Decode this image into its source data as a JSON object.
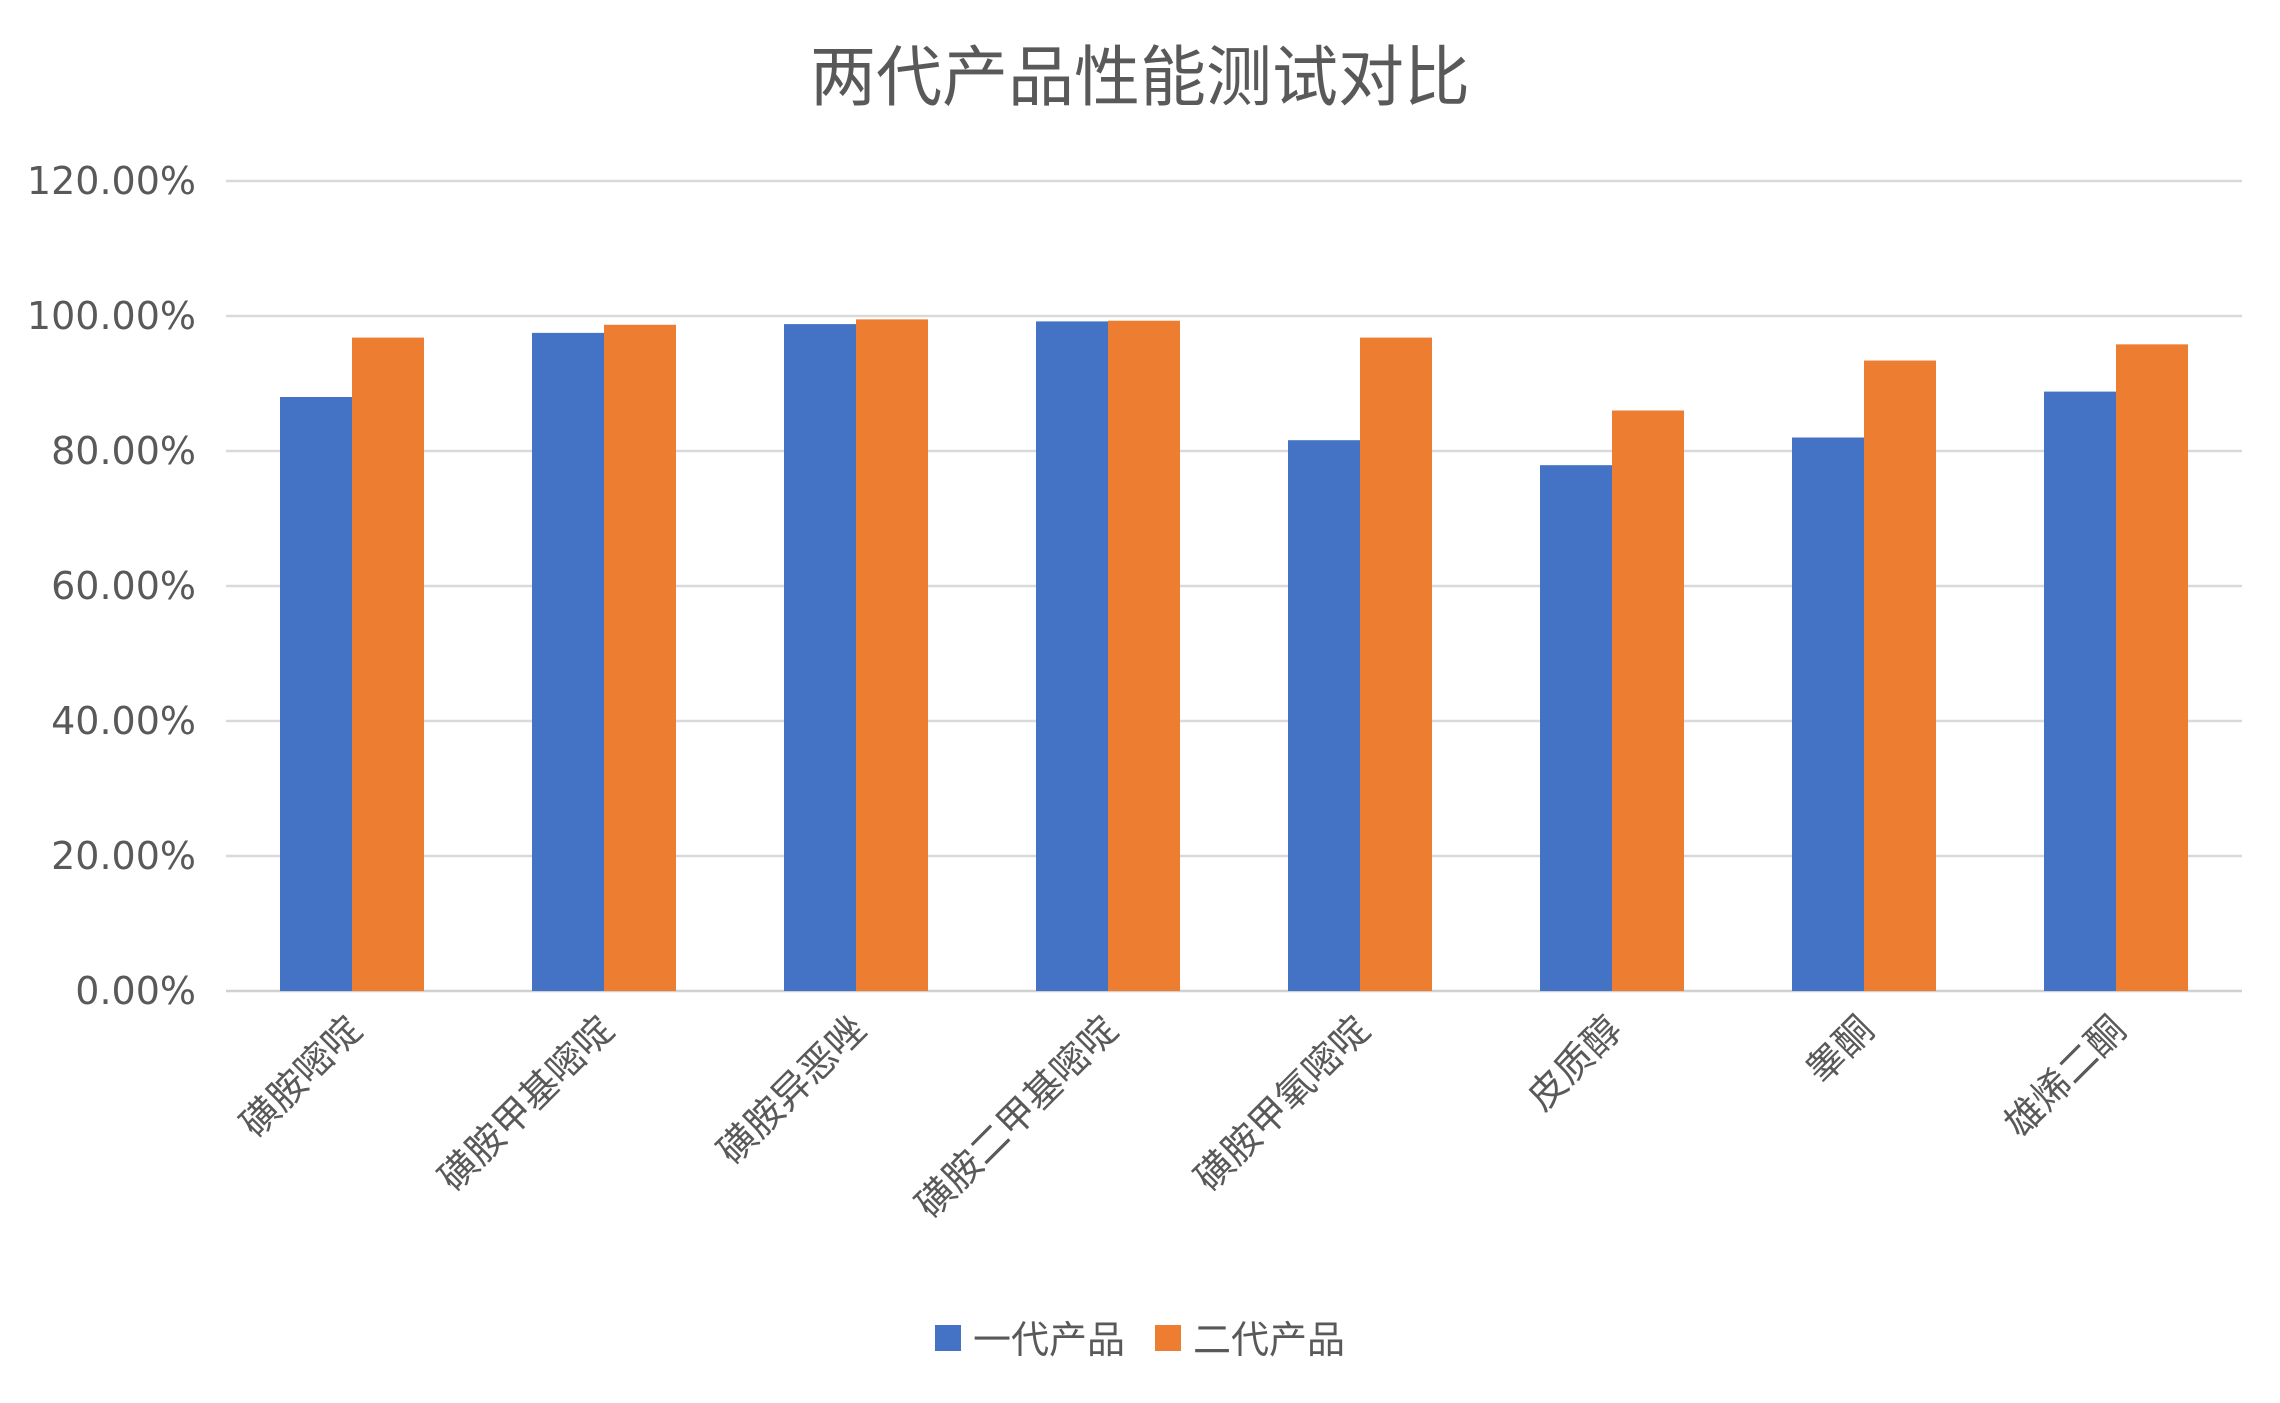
{
  "chart_data": {
    "type": "bar",
    "title": "两代产品性能测试对比",
    "xlabel": "",
    "ylabel": "",
    "categories": [
      "磺胺嘧啶",
      "磺胺甲基嘧啶",
      "磺胺异恶唑",
      "磺胺二甲基嘧啶",
      "磺胺甲氧嘧啶",
      "皮质醇",
      "睾酮",
      "雄烯二酮"
    ],
    "series": [
      {
        "name": "一代产品",
        "color": "#4472c4",
        "values": [
          0.88,
          0.975,
          0.988,
          0.992,
          0.816,
          0.779,
          0.82,
          0.888
        ]
      },
      {
        "name": "二代产品",
        "color": "#ed7d31",
        "values": [
          0.968,
          0.987,
          0.995,
          0.993,
          0.968,
          0.86,
          0.934,
          0.958
        ]
      }
    ],
    "ylim": [
      0,
      1.2
    ],
    "yticks": [
      0,
      0.2,
      0.4,
      0.6,
      0.8,
      1.0,
      1.2
    ],
    "ytick_labels": [
      "0.00%",
      "20.00%",
      "40.00%",
      "60.00%",
      "80.00%",
      "100.00%",
      "120.00%"
    ],
    "grid": true,
    "legend_position": "bottom",
    "colors": {
      "text": "#595959",
      "grid": "#d9d9d9",
      "background": "#ffffff"
    }
  }
}
